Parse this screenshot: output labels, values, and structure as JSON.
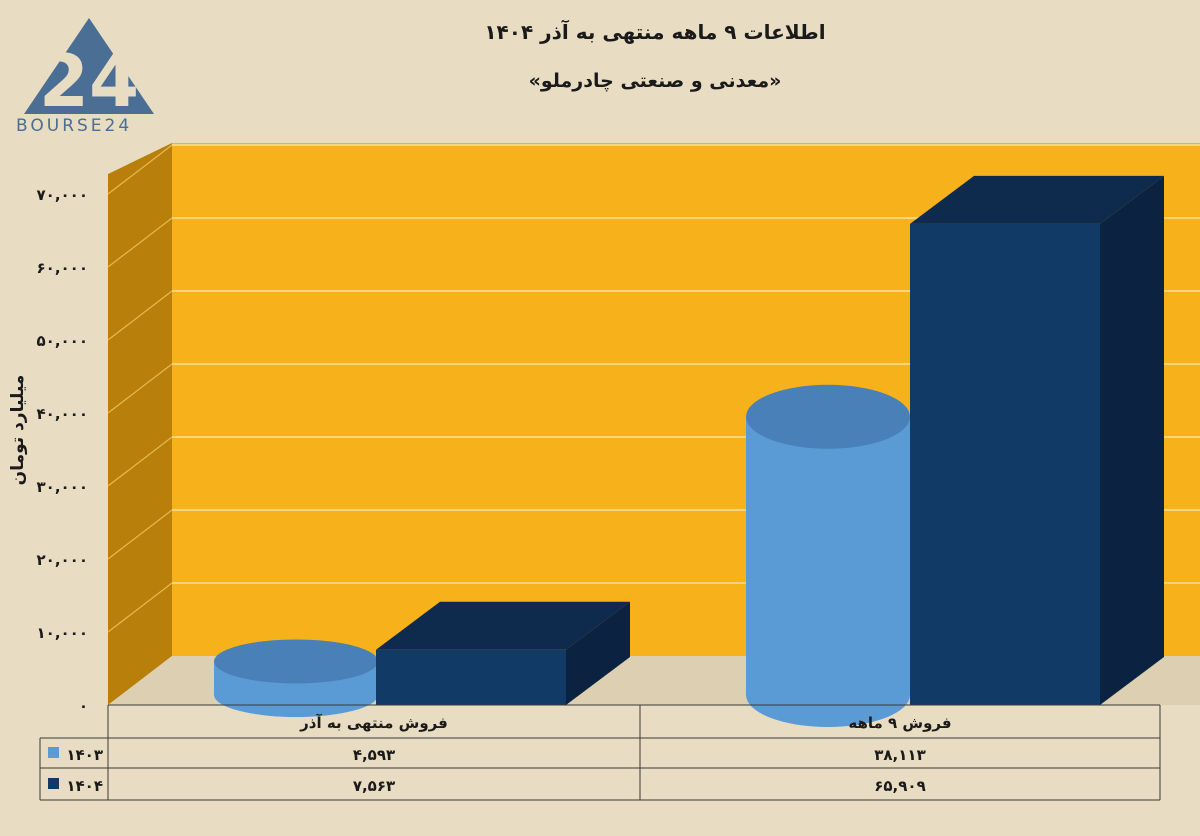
{
  "header": {
    "title": "اطلاعات ۹ ماهه منتهی به آذر ۱۴۰۴",
    "subtitle": "«معدنی و صنعتی چادرملو»"
  },
  "logo": {
    "text": "BOURSE24",
    "mark": "24"
  },
  "chart_data": {
    "type": "bar",
    "ylabel": "میلیارد تومان",
    "ylim": [
      0,
      70000
    ],
    "yticks": [
      0,
      10000,
      20000,
      30000,
      40000,
      50000,
      60000,
      70000
    ],
    "ytick_labels": [
      "۰",
      "۱۰,۰۰۰",
      "۲۰,۰۰۰",
      "۳۰,۰۰۰",
      "۴۰,۰۰۰",
      "۵۰,۰۰۰",
      "۶۰,۰۰۰",
      "۷۰,۰۰۰"
    ],
    "categories": [
      "فروش منتهی به آذر",
      "فروش ۹ ماهه"
    ],
    "series": [
      {
        "name": "۱۴۰۳",
        "shape": "cylinder",
        "color": "#5b9bd5",
        "values": [
          4593,
          38113
        ],
        "labels": [
          "۴,۵۹۳",
          "۳۸,۱۱۳"
        ]
      },
      {
        "name": "۱۴۰۴",
        "shape": "box",
        "color": "#123a66",
        "values": [
          7563,
          65909
        ],
        "labels": [
          "۷,۵۶۳",
          "۶۵,۹۰۹"
        ]
      }
    ],
    "grid": true,
    "background": "#f7b11b",
    "side_wall": "#b8800a"
  }
}
